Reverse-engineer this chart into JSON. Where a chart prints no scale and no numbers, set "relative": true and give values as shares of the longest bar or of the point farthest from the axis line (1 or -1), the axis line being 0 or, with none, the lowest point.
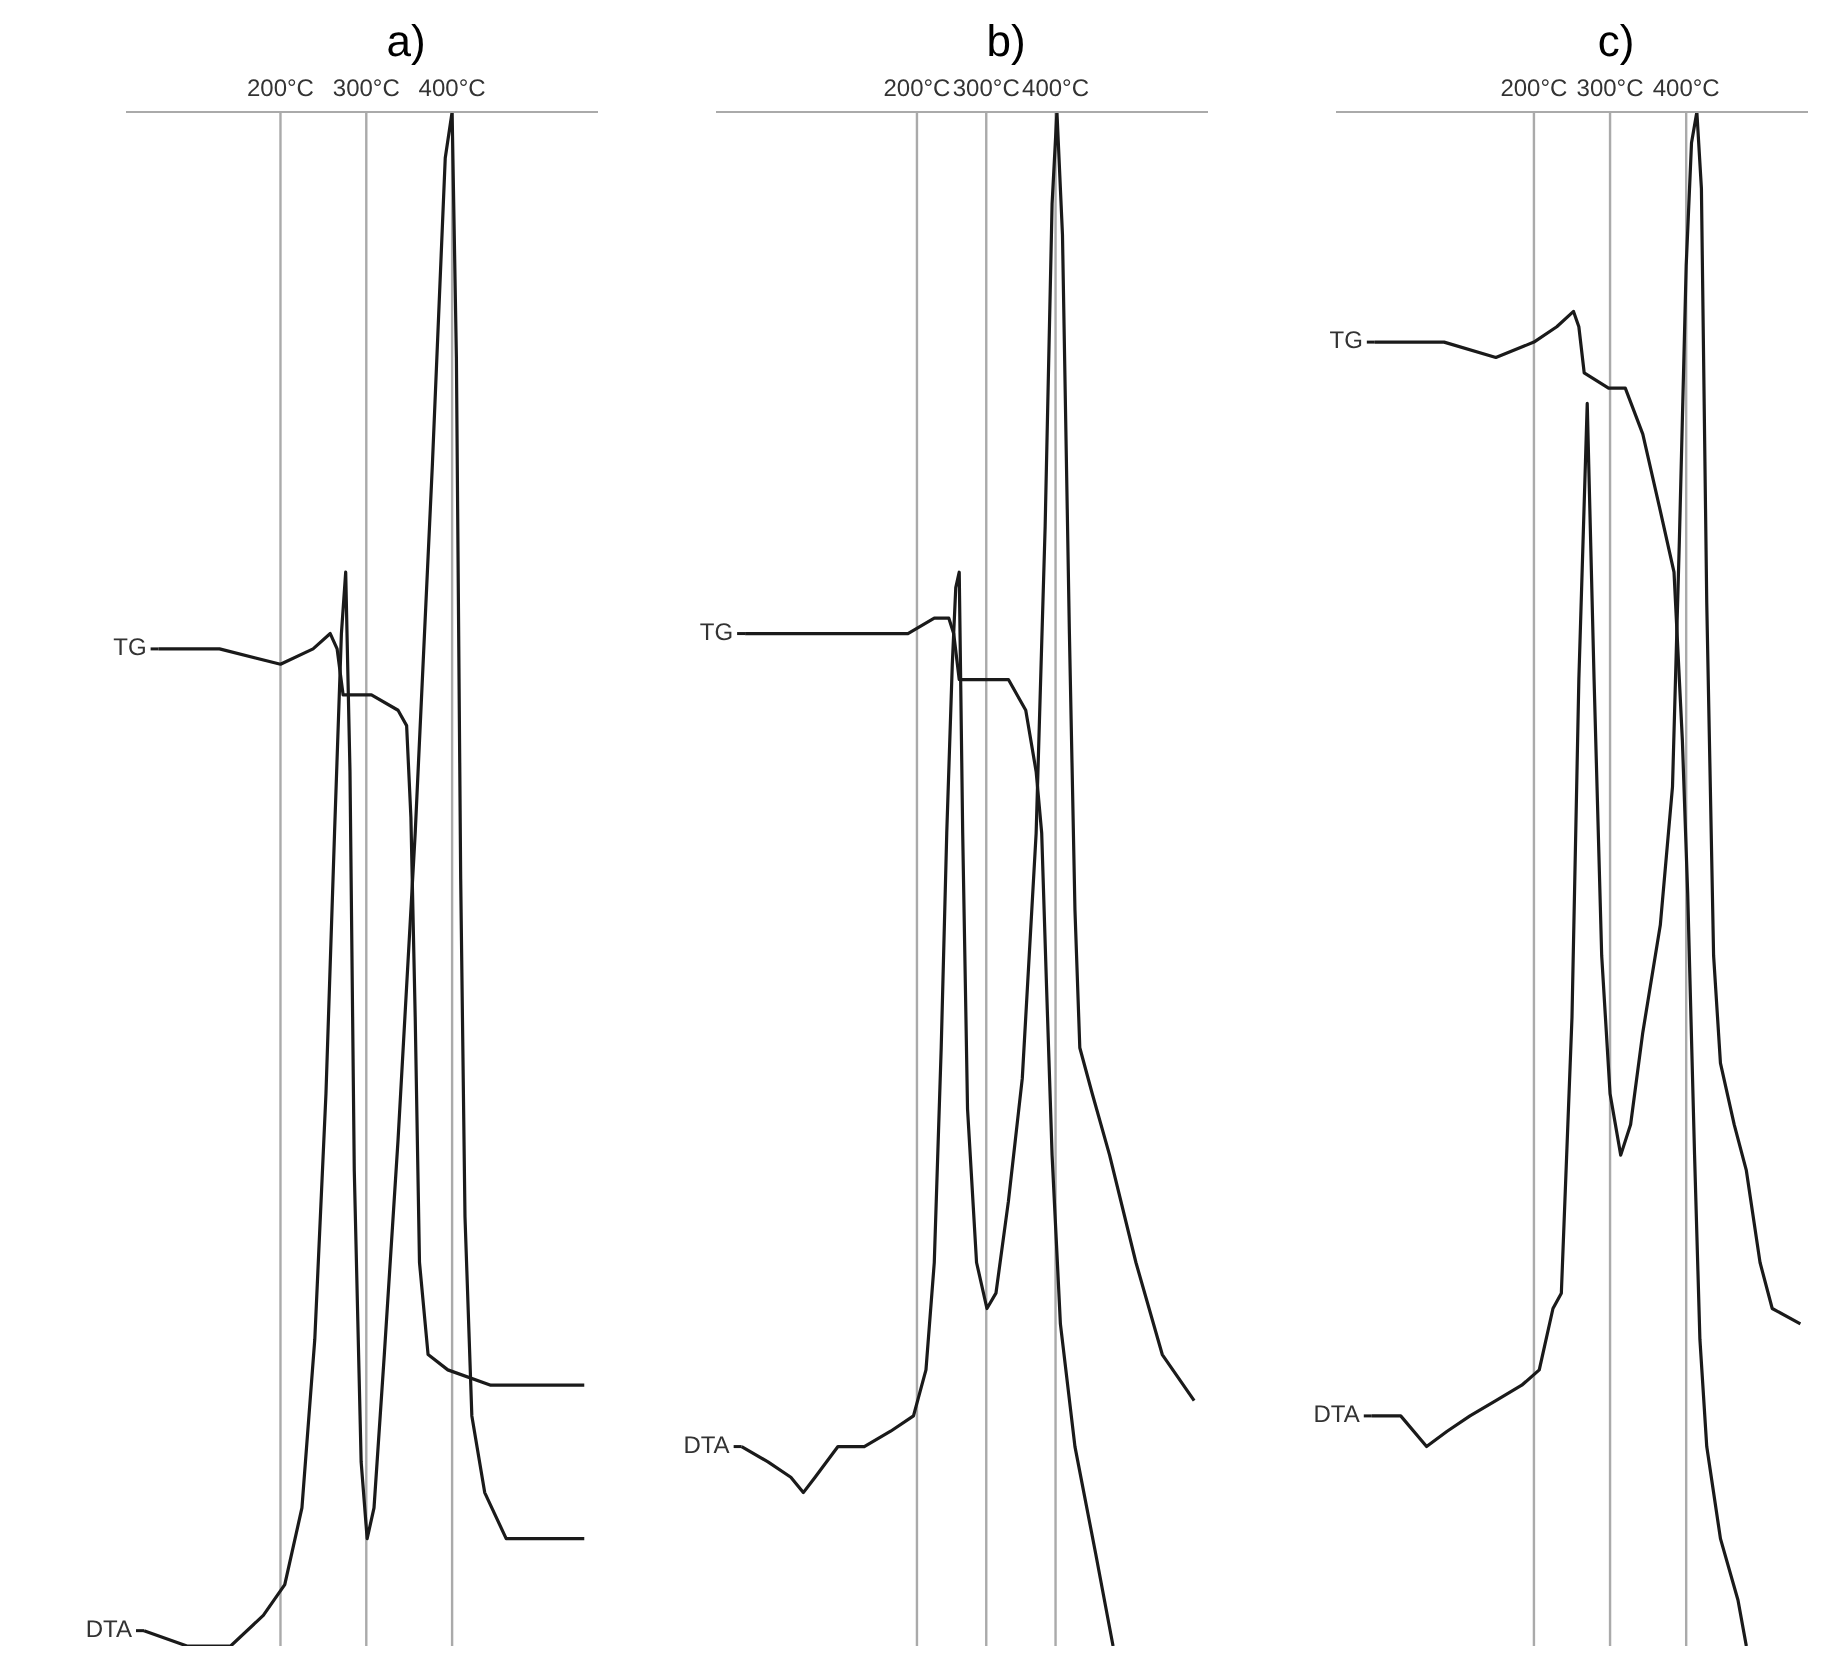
{
  "chart_data": [
    {
      "type": "line",
      "title": "a)",
      "relative": true,
      "legend": "left",
      "xlim": [
        20,
        570
      ],
      "tick_labels": "x",
      "grid": "x",
      "xticks": [
        {
          "value": 200,
          "label": "200°C"
        },
        {
          "value": 300,
          "label": "300°C"
        },
        {
          "value": 400,
          "label": "400°C"
        }
      ],
      "series": [
        {
          "name": "TG",
          "color": "#1a1a1a",
          "x": [
            58,
            129,
            200,
            238,
            258,
            266,
            273,
            306,
            337,
            347,
            352,
            357,
            362,
            372,
            395,
            445,
            554
          ],
          "values": [
            0.65,
            0.65,
            0.64,
            0.65,
            0.66,
            0.65,
            0.62,
            0.62,
            0.61,
            0.6,
            0.54,
            0.41,
            0.25,
            0.19,
            0.18,
            0.17,
            0.17
          ]
        },
        {
          "name": "DTA",
          "color": "#1a1a1a",
          "x": [
            41,
            91,
            142,
            180,
            205,
            225,
            240,
            253,
            263,
            271,
            276,
            281,
            286,
            294,
            301,
            309,
            321,
            337,
            357,
            377,
            392,
            400,
            405,
            410,
            415,
            423,
            438,
            463,
            496,
            554
          ],
          "values": [
            0.01,
            0,
            0,
            0.02,
            0.04,
            0.09,
            0.2,
            0.36,
            0.53,
            0.66,
            0.7,
            0.57,
            0.31,
            0.12,
            0.07,
            0.09,
            0.19,
            0.33,
            0.53,
            0.77,
            0.97,
            1,
            0.84,
            0.5,
            0.28,
            0.15,
            0.1,
            0.07,
            0.07,
            0.07
          ]
        }
      ]
    },
    {
      "type": "line",
      "title": "b)",
      "relative": true,
      "legend": "left",
      "xlim": [
        -90,
        620
      ],
      "tick_labels": "x",
      "grid": "x",
      "xticks": [
        {
          "value": 200,
          "label": "200°C"
        },
        {
          "value": 300,
          "label": "300°C"
        },
        {
          "value": 400,
          "label": "400°C"
        }
      ],
      "series": [
        {
          "name": "TG",
          "color": "#1a1a1a",
          "x": [
            -48,
            23,
            99,
            187,
            225,
            246,
            253,
            261,
            296,
            332,
            357,
            372,
            380,
            387,
            395,
            407,
            428,
            458,
            483
          ],
          "values": [
            0.66,
            0.66,
            0.66,
            0.66,
            0.67,
            0.67,
            0.66,
            0.63,
            0.63,
            0.63,
            0.61,
            0.57,
            0.53,
            0.43,
            0.32,
            0.21,
            0.13,
            0.06,
            0
          ]
        },
        {
          "name": "DTA",
          "color": "#1a1a1a",
          "x": [
            -53,
            -15,
            18,
            36,
            53,
            86,
            124,
            162,
            195,
            213,
            225,
            235,
            243,
            251,
            256,
            261,
            266,
            273,
            286,
            301,
            314,
            332,
            352,
            372,
            385,
            395,
            402,
            410,
            420,
            428,
            435,
            453,
            478,
            516,
            554,
            600
          ],
          "values": [
            0.13,
            0.12,
            0.11,
            0.1,
            0.11,
            0.13,
            0.13,
            0.14,
            0.15,
            0.18,
            0.25,
            0.39,
            0.53,
            0.64,
            0.69,
            0.7,
            0.53,
            0.35,
            0.25,
            0.22,
            0.23,
            0.29,
            0.37,
            0.53,
            0.73,
            0.94,
            1,
            0.92,
            0.66,
            0.48,
            0.39,
            0.36,
            0.32,
            0.25,
            0.19,
            0.16
          ]
        }
      ]
    },
    {
      "type": "line",
      "title": "c)",
      "relative": true,
      "legend": "left",
      "xlim": [
        -60,
        560
      ],
      "tick_labels": "x",
      "grid": "x",
      "xticks": [
        {
          "value": 200,
          "label": "200°C"
        },
        {
          "value": 300,
          "label": "300°C"
        },
        {
          "value": 400,
          "label": "400°C"
        }
      ],
      "series": [
        {
          "name": "TG",
          "color": "#1a1a1a",
          "x": [
            -9,
            37,
            82,
            150,
            200,
            230,
            252,
            259,
            266,
            298,
            320,
            343,
            366,
            384,
            395,
            402,
            411,
            418,
            427,
            445,
            468,
            479
          ],
          "values": [
            0.85,
            0.85,
            0.85,
            0.84,
            0.85,
            0.86,
            0.87,
            0.86,
            0.83,
            0.82,
            0.82,
            0.79,
            0.74,
            0.7,
            0.59,
            0.49,
            0.32,
            0.2,
            0.13,
            0.07,
            0.03,
            0
          ]
        },
        {
          "name": "DTA",
          "color": "#1a1a1a",
          "x": [
            -13,
            25,
            59,
            86,
            116,
            150,
            184,
            207,
            225,
            236,
            250,
            259,
            270,
            279,
            289,
            300,
            314,
            327,
            343,
            366,
            382,
            391,
            400,
            407,
            414,
            420,
            427,
            436,
            445,
            463,
            479,
            497,
            513,
            550
          ],
          "values": [
            0.15,
            0.15,
            0.13,
            0.14,
            0.15,
            0.16,
            0.17,
            0.18,
            0.22,
            0.23,
            0.41,
            0.63,
            0.81,
            0.63,
            0.45,
            0.36,
            0.32,
            0.34,
            0.4,
            0.47,
            0.56,
            0.72,
            0.9,
            0.98,
            1,
            0.95,
            0.68,
            0.45,
            0.38,
            0.34,
            0.31,
            0.25,
            0.22,
            0.21
          ]
        }
      ]
    }
  ]
}
